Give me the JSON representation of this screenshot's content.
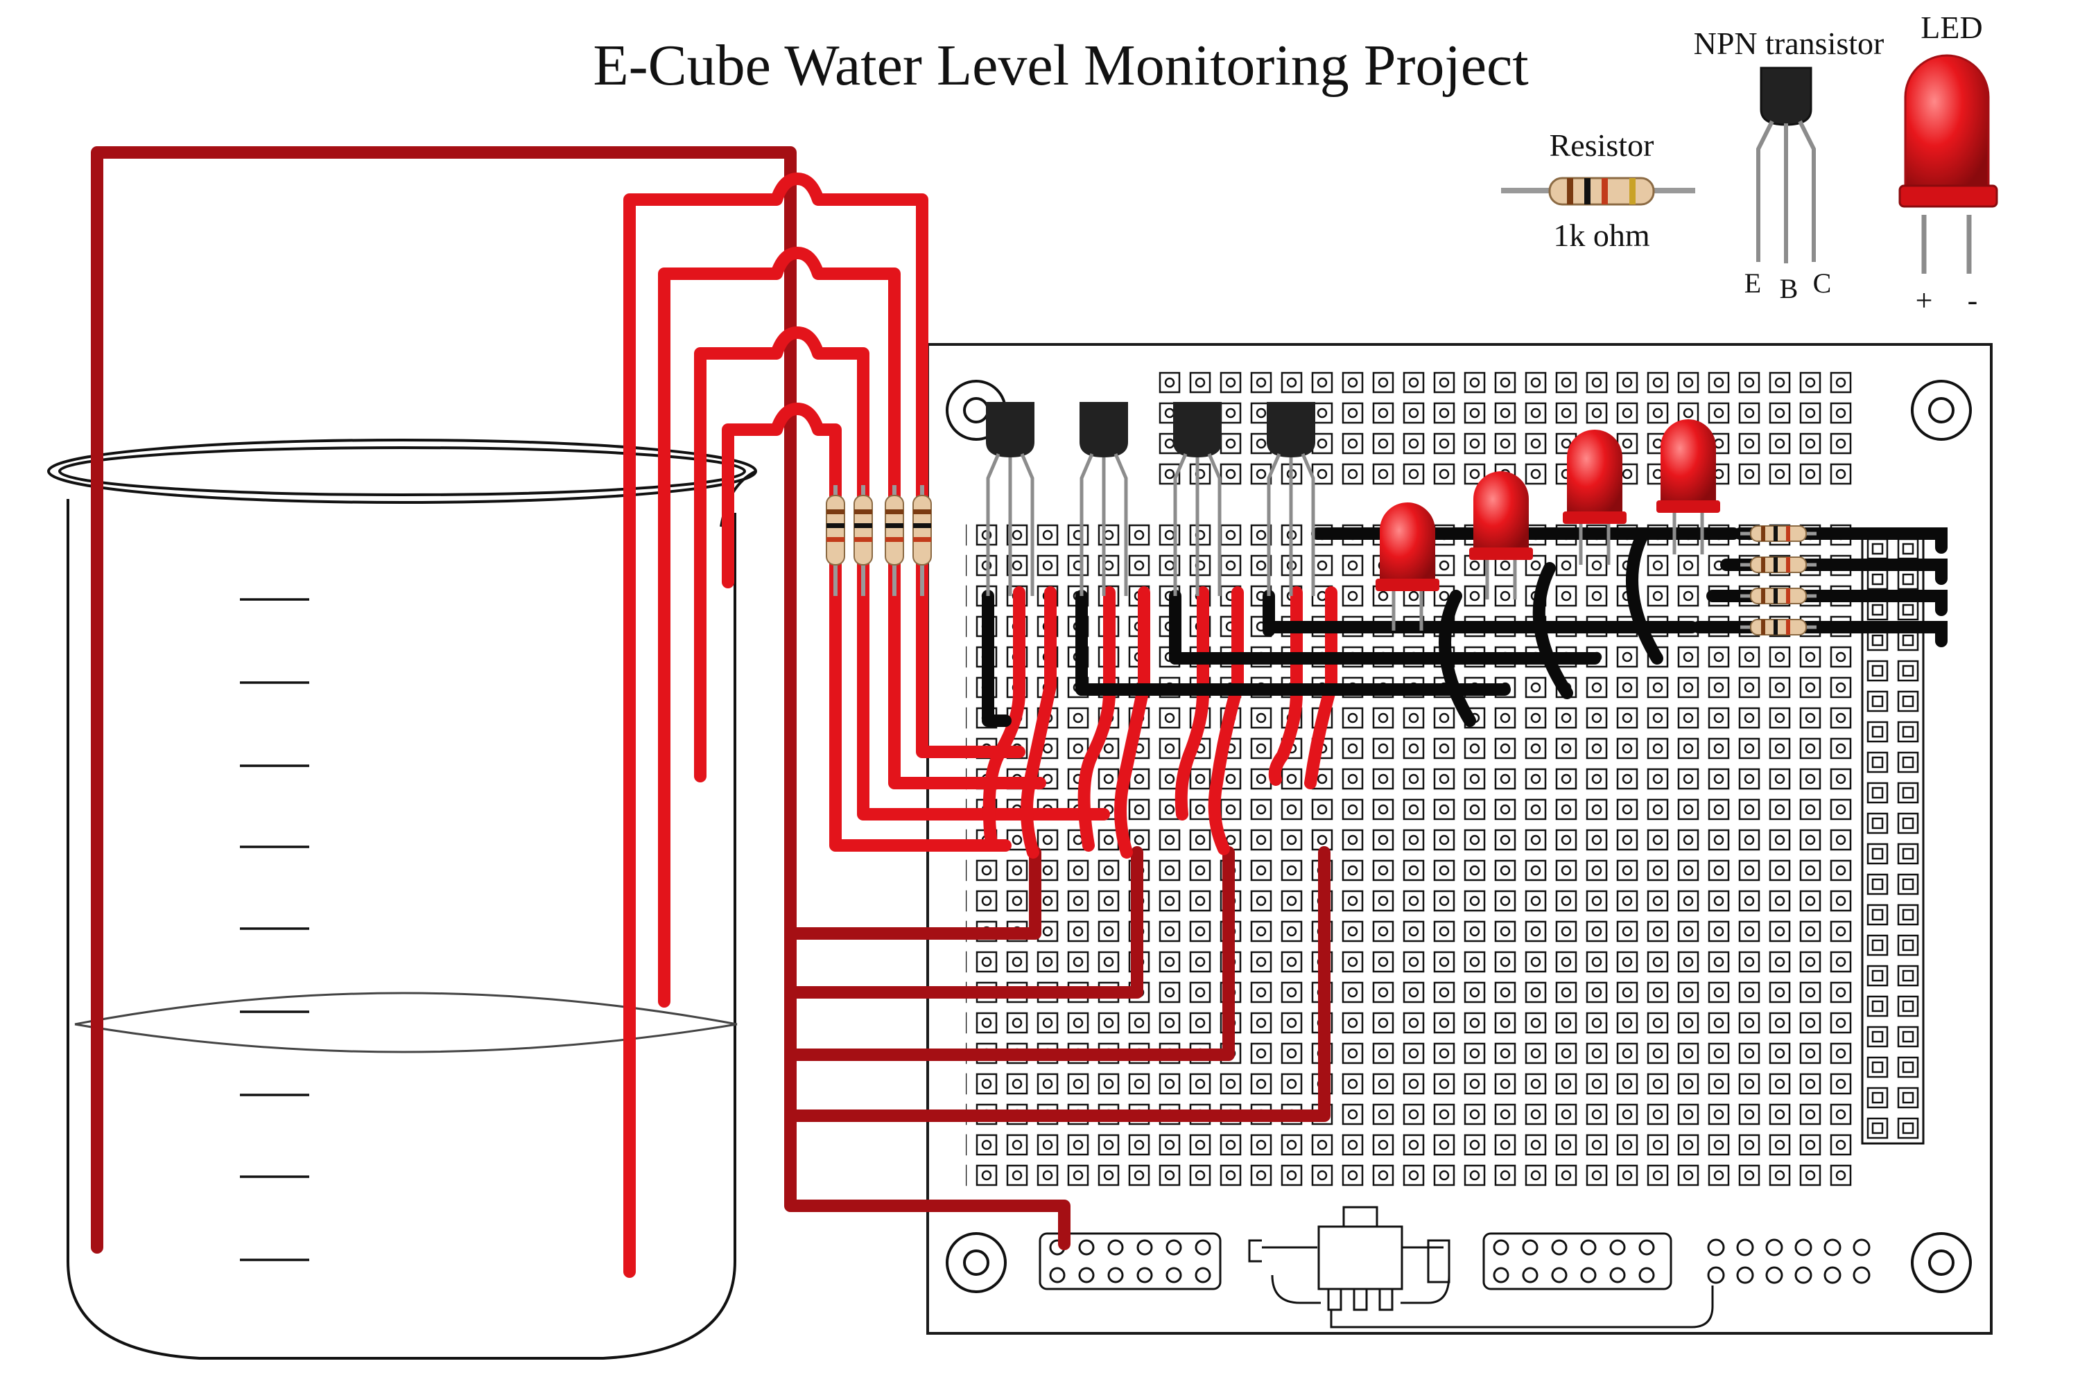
{
  "title": "E-Cube Water Level Monitoring Project",
  "legend": {
    "resistor_label": "Resistor",
    "resistor_value": "1k ohm",
    "transistor_label": "NPN transistor",
    "transistor_pins": [
      "E",
      "B",
      "C"
    ],
    "led_label": "LED",
    "led_plus": "+",
    "led_minus": "-"
  },
  "colors": {
    "bright_wire": "#e3141b",
    "dark_wire": "#a50f14",
    "black_wire": "#0a0a0a",
    "led": "#e8171c",
    "board_outline": "#1a1a1a"
  },
  "icons": {
    "transistor": "npn-transistor-icon",
    "resistor": "resistor-icon",
    "led": "led-icon",
    "beaker": "beaker-icon",
    "regulator": "voltage-regulator-icon"
  }
}
